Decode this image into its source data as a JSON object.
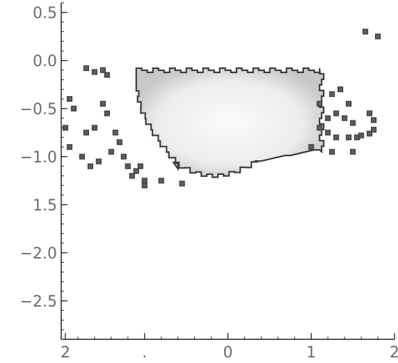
{
  "chart_data": {
    "type": "heatmap",
    "title": "",
    "xlabel": "",
    "ylabel": "",
    "xlim": [
      2,
      -2
    ],
    "ylim": [
      -2.9,
      0.6
    ],
    "x_ticks": [
      {
        "value": 1.95,
        "label": "2"
      },
      {
        "value": 1.0,
        "label": "."
      },
      {
        "value": 0.0,
        "label": "0"
      },
      {
        "value": -1.0,
        "label": "1"
      },
      {
        "value": -2.0,
        "label": "2"
      }
    ],
    "y_ticks": [
      {
        "value": 0.5,
        "label": "0.5"
      },
      {
        "value": 0.0,
        "label": "0.0"
      },
      {
        "value": -0.5,
        "label": "−0.5"
      },
      {
        "value": -1.0,
        "label": "−1.0"
      },
      {
        "value": -1.5,
        "label": "1.5"
      },
      {
        "value": -2.0,
        "label": "−2.0"
      },
      {
        "value": -2.5,
        "label": "−2.5"
      }
    ],
    "grid": false,
    "density_region": {
      "x_extent": [
        1.1,
        -1.1
      ],
      "y_extent": [
        -1.2,
        -0.08
      ],
      "peak": [
        0.0,
        -0.6
      ],
      "fill": "grayscale, white at peak to light gray at edge",
      "outline": "dark gray pixelated contour"
    },
    "outlier_points": [
      [
        1.7,
        -0.08
      ],
      [
        1.6,
        -0.12
      ],
      [
        1.5,
        -0.1
      ],
      [
        1.45,
        -0.15
      ],
      [
        1.9,
        -0.4
      ],
      [
        1.85,
        -0.5
      ],
      [
        1.95,
        -0.7
      ],
      [
        1.7,
        -0.75
      ],
      [
        1.6,
        -0.7
      ],
      [
        1.5,
        -0.45
      ],
      [
        1.45,
        -0.55
      ],
      [
        1.35,
        -0.75
      ],
      [
        1.3,
        -0.85
      ],
      [
        1.9,
        -0.9
      ],
      [
        1.75,
        -1.0
      ],
      [
        1.65,
        -1.1
      ],
      [
        1.55,
        -1.05
      ],
      [
        1.4,
        -0.95
      ],
      [
        1.25,
        -1.0
      ],
      [
        1.2,
        -1.1
      ],
      [
        1.05,
        -1.1
      ],
      [
        1.1,
        -1.15
      ],
      [
        1.15,
        -1.2
      ],
      [
        1.0,
        -1.25
      ],
      [
        1.0,
        -1.3
      ],
      [
        0.8,
        -1.25
      ],
      [
        0.55,
        -1.28
      ],
      [
        -1.1,
        -0.45
      ],
      [
        -1.25,
        -0.35
      ],
      [
        -1.35,
        -0.3
      ],
      [
        -1.45,
        -0.45
      ],
      [
        -1.3,
        -0.55
      ],
      [
        -1.2,
        -0.6
      ],
      [
        -1.4,
        -0.6
      ],
      [
        -1.5,
        -0.65
      ],
      [
        -1.1,
        -0.7
      ],
      [
        -1.2,
        -0.75
      ],
      [
        -1.3,
        -0.8
      ],
      [
        -1.45,
        -0.8
      ],
      [
        -1.55,
        -0.8
      ],
      [
        -1.6,
        -0.78
      ],
      [
        -1.7,
        -0.76
      ],
      [
        -1.75,
        -0.72
      ],
      [
        -1.7,
        -0.55
      ],
      [
        -1.75,
        -0.62
      ],
      [
        -1.65,
        0.3
      ],
      [
        -1.8,
        0.25
      ],
      [
        -1.5,
        -0.95
      ],
      [
        -1.25,
        -0.95
      ],
      [
        -1.0,
        -0.9
      ]
    ],
    "colors": {
      "outline": "#3c3c3c",
      "point_fill": "#5c5c5c",
      "density_peak": "#fbfbfb",
      "density_edge": "#c8c8c8",
      "axis": "#222222",
      "tick_label": "#6a6a6a"
    }
  }
}
